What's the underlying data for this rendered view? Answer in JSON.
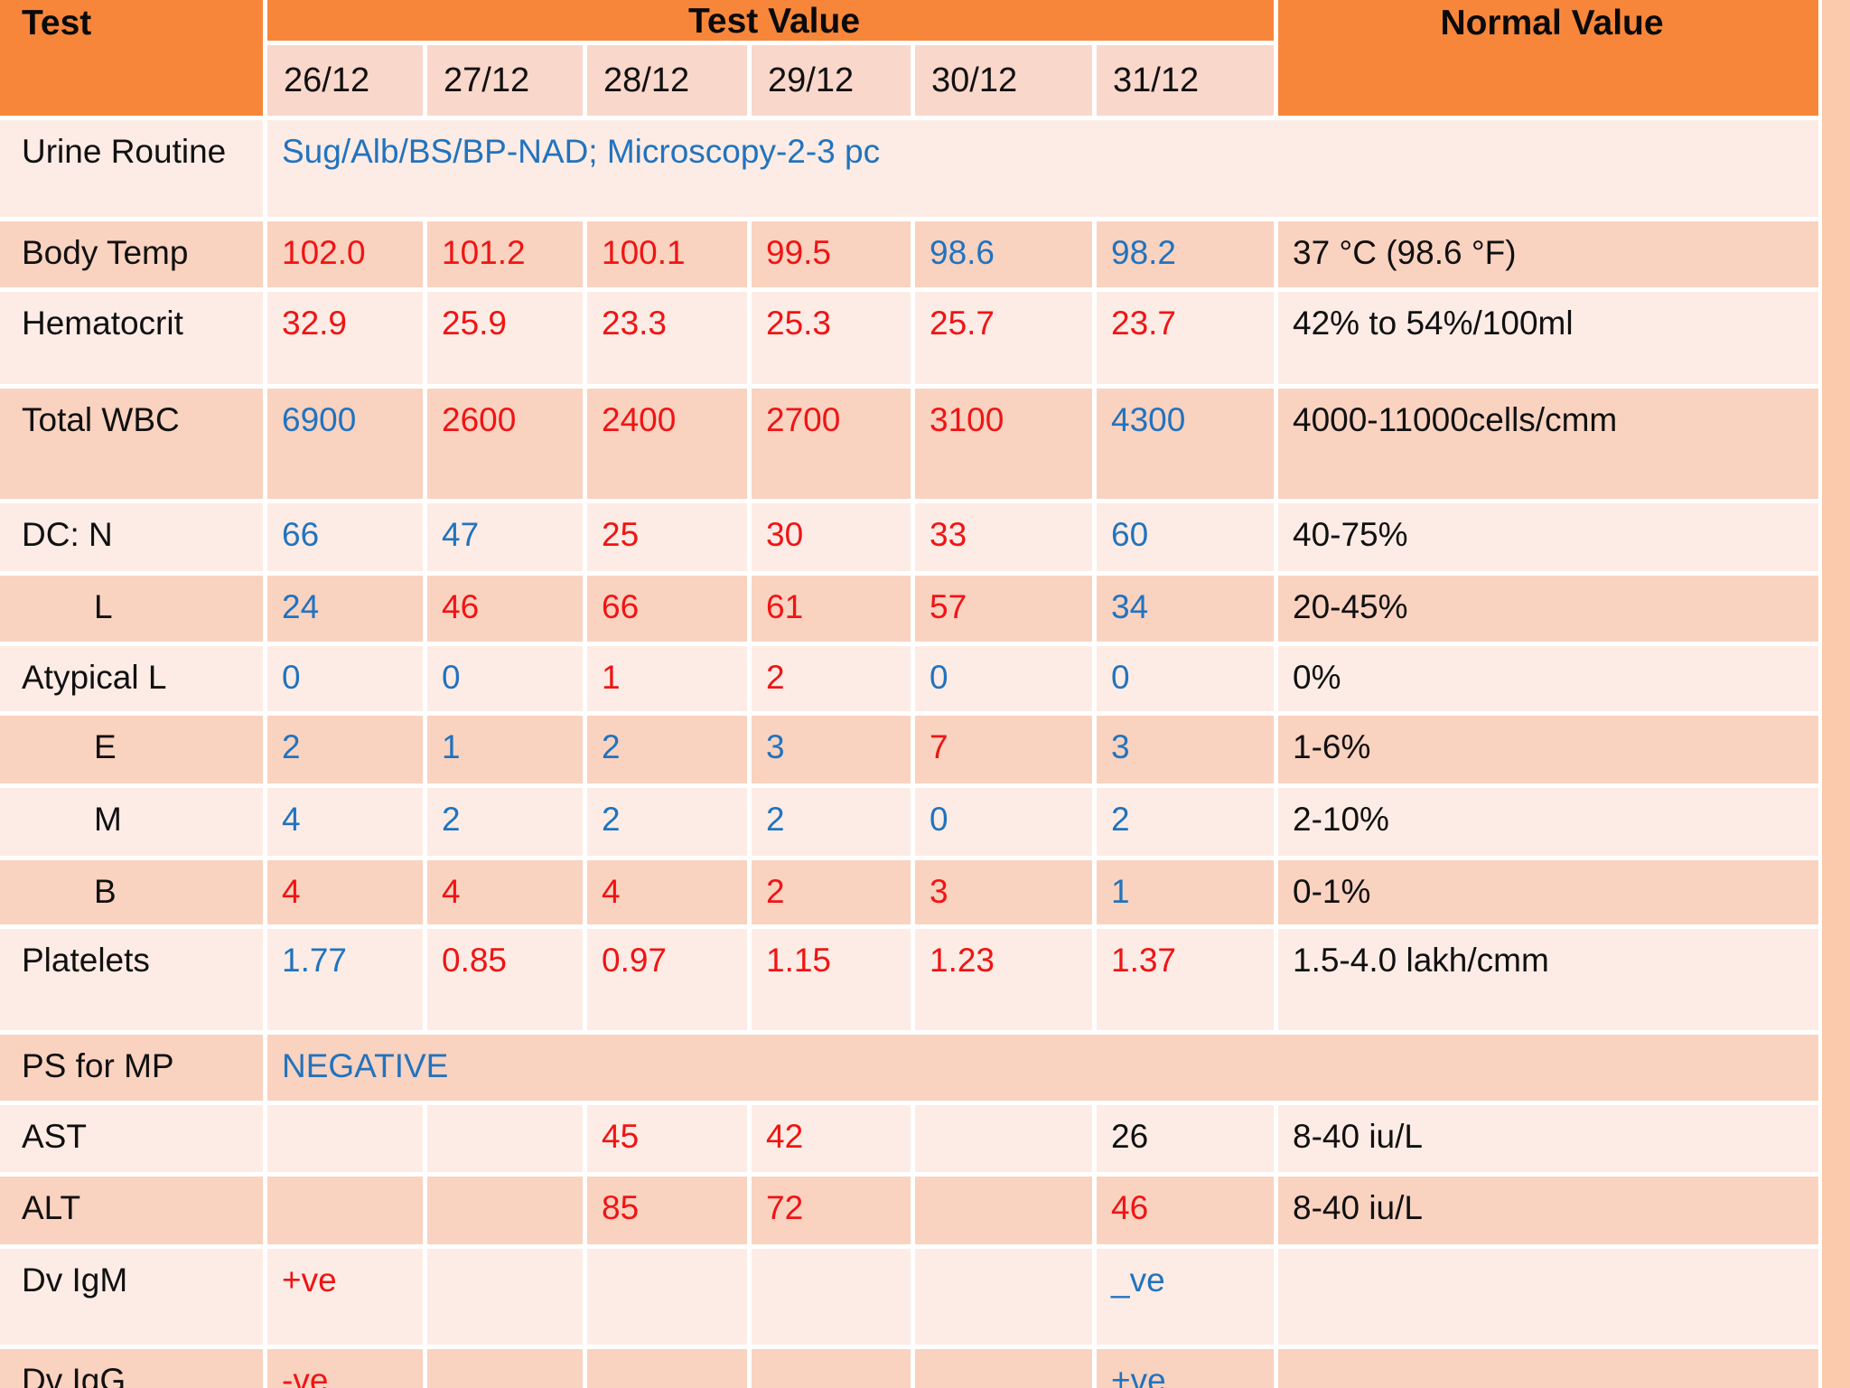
{
  "table": {
    "header": {
      "test": "Test",
      "test_value": "Test Value",
      "normal_value": "Normal Value"
    },
    "dates": [
      "26/12",
      "27/12",
      "28/12",
      "29/12",
      "30/12",
      "31/12"
    ],
    "rows": [
      {
        "label": "Urine Routine",
        "band": "L",
        "span_value": "Sug/Alb/BS/BP-NAD; Microscopy-2-3 pc",
        "span_color": "blue"
      },
      {
        "label": "Body Temp",
        "band": "D",
        "values": [
          {
            "t": "102.0",
            "c": "red"
          },
          {
            "t": "101.2",
            "c": "red"
          },
          {
            "t": "100.1",
            "c": "red"
          },
          {
            "t": "99.5",
            "c": "red"
          },
          {
            "t": "98.6",
            "c": "blue"
          },
          {
            "t": "98.2",
            "c": "blue"
          }
        ],
        "normal": "37 °C (98.6 °F)"
      },
      {
        "label": "Hematocrit",
        "band": "L",
        "values": [
          {
            "t": "32.9",
            "c": "red"
          },
          {
            "t": "25.9",
            "c": "red"
          },
          {
            "t": "23.3",
            "c": "red"
          },
          {
            "t": "25.3",
            "c": "red"
          },
          {
            "t": "25.7",
            "c": "red"
          },
          {
            "t": "23.7",
            "c": "red"
          }
        ],
        "normal": "42% to 54%/100ml"
      },
      {
        "label": "Total WBC",
        "band": "D",
        "values": [
          {
            "t": "6900",
            "c": "blue"
          },
          {
            "t": "2600",
            "c": "red"
          },
          {
            "t": "2400",
            "c": "red"
          },
          {
            "t": "2700",
            "c": "red"
          },
          {
            "t": "3100",
            "c": "red"
          },
          {
            "t": "4300",
            "c": "blue"
          }
        ],
        "normal": "4000-11000cells/cmm"
      },
      {
        "label": "DC: N",
        "band": "L",
        "values": [
          {
            "t": "66",
            "c": "blue"
          },
          {
            "t": "47",
            "c": "blue"
          },
          {
            "t": "25",
            "c": "red"
          },
          {
            "t": "30",
            "c": "red"
          },
          {
            "t": "33",
            "c": "red"
          },
          {
            "t": "60",
            "c": "blue"
          }
        ],
        "normal": "40-75%"
      },
      {
        "label": "L",
        "band": "D",
        "indent": true,
        "values": [
          {
            "t": "24",
            "c": "blue"
          },
          {
            "t": "46",
            "c": "red"
          },
          {
            "t": "66",
            "c": "red"
          },
          {
            "t": "61",
            "c": "red"
          },
          {
            "t": "57",
            "c": "red"
          },
          {
            "t": "34",
            "c": "blue"
          }
        ],
        "normal": "20-45%"
      },
      {
        "label": "Atypical L",
        "band": "L",
        "values": [
          {
            "t": "0",
            "c": "blue"
          },
          {
            "t": "0",
            "c": "blue"
          },
          {
            "t": "1",
            "c": "red"
          },
          {
            "t": "2",
            "c": "red"
          },
          {
            "t": "0",
            "c": "blue"
          },
          {
            "t": "0",
            "c": "blue"
          }
        ],
        "normal": "0%"
      },
      {
        "label": "E",
        "band": "D",
        "indent": true,
        "values": [
          {
            "t": "2",
            "c": "blue"
          },
          {
            "t": "1",
            "c": "blue"
          },
          {
            "t": "2",
            "c": "blue"
          },
          {
            "t": "3",
            "c": "blue"
          },
          {
            "t": "7",
            "c": "red"
          },
          {
            "t": "3",
            "c": "blue"
          }
        ],
        "normal": "1-6%"
      },
      {
        "label": "M",
        "band": "L",
        "indent": true,
        "values": [
          {
            "t": "4",
            "c": "blue"
          },
          {
            "t": "2",
            "c": "blue"
          },
          {
            "t": "2",
            "c": "blue"
          },
          {
            "t": "2",
            "c": "blue"
          },
          {
            "t": "0",
            "c": "blue"
          },
          {
            "t": "2",
            "c": "blue"
          }
        ],
        "normal": "2-10%"
      },
      {
        "label": "B",
        "band": "D",
        "indent": true,
        "values": [
          {
            "t": "4",
            "c": "red"
          },
          {
            "t": "4",
            "c": "red"
          },
          {
            "t": "4",
            "c": "red"
          },
          {
            "t": "2",
            "c": "red"
          },
          {
            "t": "3",
            "c": "red"
          },
          {
            "t": "1",
            "c": "blue"
          }
        ],
        "normal": "0-1%"
      },
      {
        "label": "Platelets",
        "band": "L",
        "values": [
          {
            "t": "1.77",
            "c": "blue"
          },
          {
            "t": "0.85",
            "c": "red"
          },
          {
            "t": "0.97",
            "c": "red"
          },
          {
            "t": "1.15",
            "c": "red"
          },
          {
            "t": "1.23",
            "c": "red"
          },
          {
            "t": "1.37",
            "c": "red"
          }
        ],
        "normal": "1.5-4.0 lakh/cmm"
      },
      {
        "label": "PS for MP",
        "band": "D",
        "span_value": "NEGATIVE",
        "span_color": "blue"
      },
      {
        "label": "AST",
        "band": "L",
        "values": [
          {
            "t": "",
            "c": "black"
          },
          {
            "t": "",
            "c": "black"
          },
          {
            "t": "45",
            "c": "red"
          },
          {
            "t": "42",
            "c": "red"
          },
          {
            "t": "",
            "c": "black"
          },
          {
            "t": "26",
            "c": "black"
          }
        ],
        "normal": "8-40 iu/L"
      },
      {
        "label": "ALT",
        "band": "D",
        "values": [
          {
            "t": "",
            "c": "black"
          },
          {
            "t": "",
            "c": "black"
          },
          {
            "t": "85",
            "c": "red"
          },
          {
            "t": "72",
            "c": "red"
          },
          {
            "t": "",
            "c": "black"
          },
          {
            "t": "46",
            "c": "red"
          }
        ],
        "normal": "8-40 iu/L"
      },
      {
        "label": "Dv IgM",
        "band": "L",
        "values": [
          {
            "t": "+ve",
            "c": "red"
          },
          {
            "t": "",
            "c": "black"
          },
          {
            "t": "",
            "c": "black"
          },
          {
            "t": "",
            "c": "black"
          },
          {
            "t": "",
            "c": "black"
          },
          {
            "t": "_ve",
            "c": "blue"
          }
        ],
        "normal": ""
      },
      {
        "label": "Dv IgG",
        "band": "D",
        "values": [
          {
            "t": "-ve",
            "c": "red"
          },
          {
            "t": "",
            "c": "black"
          },
          {
            "t": "",
            "c": "black"
          },
          {
            "t": "",
            "c": "black"
          },
          {
            "t": "",
            "c": "black"
          },
          {
            "t": "+ve",
            "c": "blue"
          }
        ],
        "normal": ""
      }
    ]
  },
  "colors": {
    "header_orange": "#F8863A",
    "band_dark": "#FAD2C0",
    "band_light": "#FDECE5",
    "dates_bg": "#FAD7CB",
    "gridline_white": "#FFFFFF",
    "page_margin_peach": "#FBC9AB",
    "value_abnormal_red": "#F01414",
    "value_normal_blue": "#2173BE",
    "text_black": "#101010"
  }
}
